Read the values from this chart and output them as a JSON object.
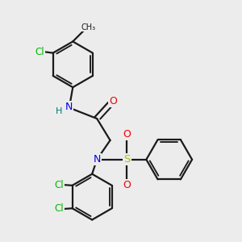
{
  "bg_color": "#ececec",
  "bond_color": "#1a1a1a",
  "bond_width": 1.6,
  "atom_colors": {
    "N": "#0000ee",
    "O": "#ee0000",
    "S": "#bbbb00",
    "Cl": "#00bb00",
    "H": "#007777",
    "C": "#1a1a1a"
  },
  "font_size": 8.5,
  "fig_size": [
    3.0,
    3.0
  ],
  "dpi": 100,
  "scale": 1.0
}
